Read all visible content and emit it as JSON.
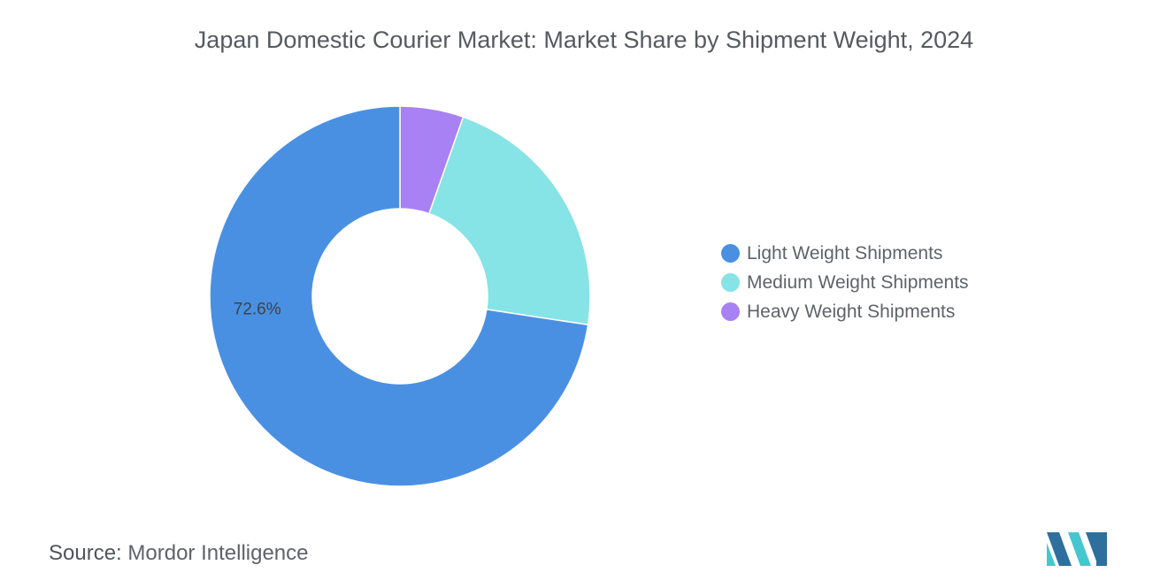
{
  "title": "Japan Domestic Courier Market: Market Share by Shipment Weight, 2024",
  "source": {
    "label": "Source:",
    "value": "Mordor Intelligence"
  },
  "colors": {
    "light": "#4a90e2",
    "medium": "#86e3e6",
    "heavy": "#a881f5",
    "logo_dark": "#2e6f9e",
    "logo_light": "#46c6cf"
  },
  "logo": "mordor-intelligence-logo",
  "chart_data": {
    "type": "pie",
    "donut": true,
    "series": [
      {
        "name": "Light Weight Shipments",
        "value": 72.6,
        "label": "72.6%",
        "color": "#4a90e2"
      },
      {
        "name": "Medium Weight Shipments",
        "value": 22.0,
        "label": "",
        "color": "#86e3e6"
      },
      {
        "name": "Heavy Weight Shipments",
        "value": 5.4,
        "label": "",
        "color": "#a881f5"
      }
    ],
    "legend_position": "right"
  }
}
